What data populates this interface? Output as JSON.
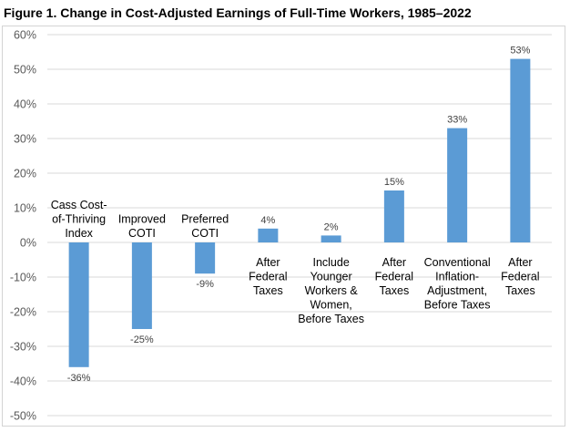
{
  "title": "Figure 1. Change in Cost-Adjusted Earnings of Full-Time Workers, 1985–2022",
  "colors": {
    "bar": "#5b9bd5",
    "grid": "#d9d9d9",
    "zero_line": "#d9d9d9"
  },
  "chart_data": {
    "type": "bar",
    "title": "Figure 1. Change in Cost-Adjusted Earnings of Full-Time Workers, 1985–2022",
    "xlabel": "",
    "ylabel": "",
    "ylim": [
      -50,
      60
    ],
    "ytick_step": 10,
    "ytick_labels": [
      "60%",
      "50%",
      "40%",
      "30%",
      "20%",
      "10%",
      "0%",
      "-10%",
      "-20%",
      "-30%",
      "-40%",
      "-50%"
    ],
    "grid": true,
    "legend": "none",
    "categories": [
      [
        "Cass Cost-",
        "of-Thriving",
        "Index"
      ],
      [
        "Improved",
        "COTI"
      ],
      [
        "Preferred",
        "COTI"
      ],
      [
        "After",
        "Federal",
        "Taxes"
      ],
      [
        "Include",
        "Younger",
        "Workers &",
        "Women,",
        "Before Taxes"
      ],
      [
        "After",
        "Federal",
        "Taxes"
      ],
      [
        "Conventional",
        "Inflation-",
        "Adjustment,",
        "Before Taxes"
      ],
      [
        "After",
        "Federal",
        "Taxes"
      ]
    ],
    "values": [
      -36,
      -25,
      -9,
      4,
      2,
      15,
      33,
      53
    ],
    "value_labels": [
      "-36%",
      "-25%",
      "-9%",
      "4%",
      "2%",
      "15%",
      "33%",
      "53%"
    ]
  }
}
